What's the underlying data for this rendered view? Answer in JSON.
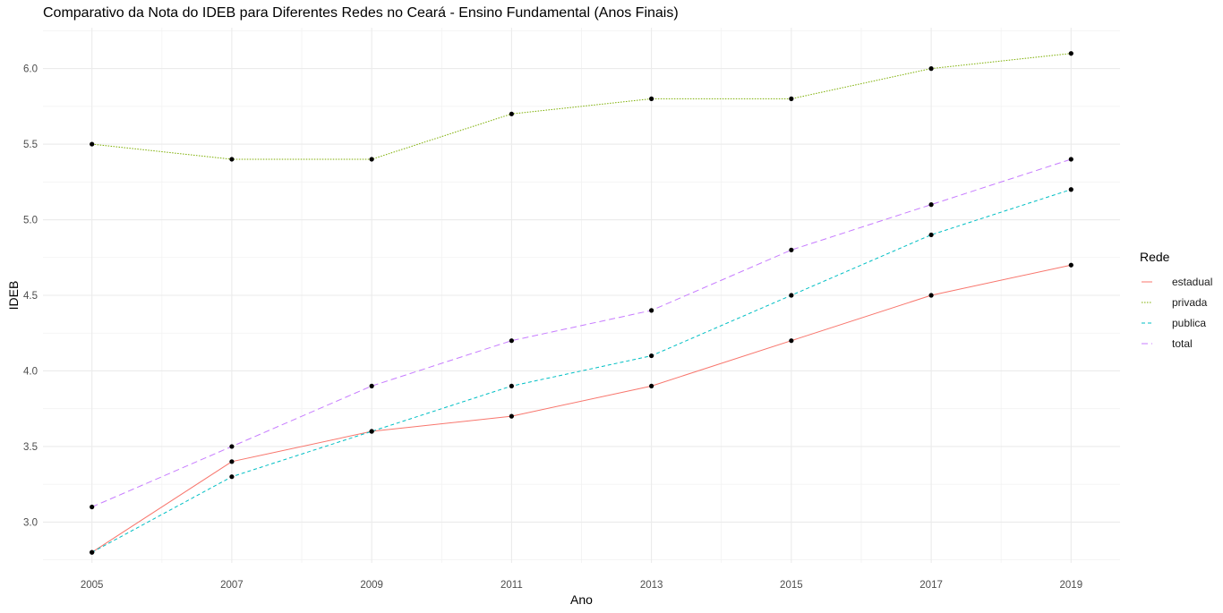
{
  "chart_data": {
    "type": "line",
    "title": "Comparativo da Nota do IDEB para Diferentes Redes no Ceará - Ensino Fundamental (Anos Finais)",
    "xlabel": "Ano",
    "ylabel": "IDEB",
    "x": [
      2005,
      2007,
      2009,
      2011,
      2013,
      2015,
      2017,
      2019
    ],
    "x_tick_labels": [
      "2005",
      "2007",
      "2009",
      "2011",
      "2013",
      "2015",
      "2017",
      "2019"
    ],
    "y_tick_labels": [
      "3.0",
      "3.5",
      "4.0",
      "4.5",
      "5.0",
      "5.5",
      "6.0"
    ],
    "xlim": [
      2004.3,
      2019.7
    ],
    "ylim": [
      2.73,
      6.27
    ],
    "grid": true,
    "legend": {
      "title": "Rede",
      "position": "right"
    },
    "series": [
      {
        "name": "estadual",
        "color": "#F8766D",
        "dash": "solid",
        "values": [
          2.8,
          3.4,
          3.6,
          3.7,
          3.9,
          4.2,
          4.5,
          4.7
        ]
      },
      {
        "name": "privada",
        "color": "#7CAE00",
        "dash": "dotted",
        "values": [
          5.5,
          5.4,
          5.4,
          5.7,
          5.8,
          5.8,
          6.0,
          6.1
        ]
      },
      {
        "name": "publica",
        "color": "#00BFC4",
        "dash": "dashed",
        "values": [
          2.8,
          3.3,
          3.6,
          3.9,
          4.1,
          4.5,
          4.9,
          5.2
        ]
      },
      {
        "name": "total",
        "color": "#C77CFF",
        "dash": "longdash",
        "values": [
          3.1,
          3.5,
          3.9,
          4.2,
          4.4,
          4.8,
          5.1,
          5.4
        ]
      }
    ]
  }
}
